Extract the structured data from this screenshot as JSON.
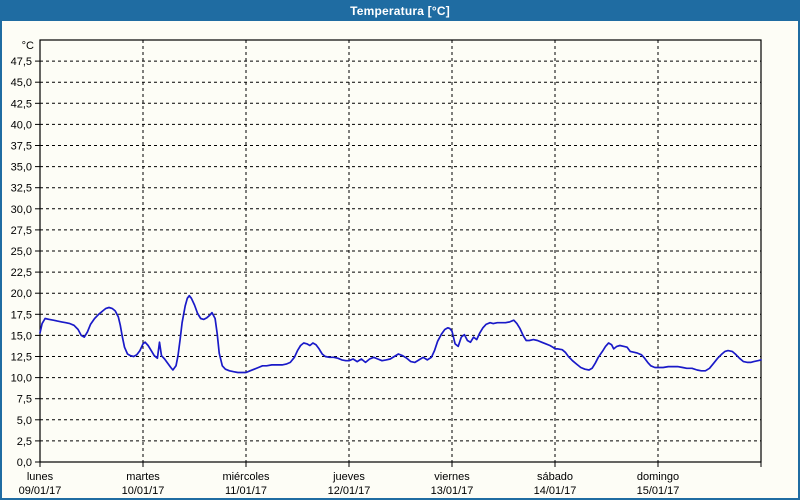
{
  "window": {
    "title": "Temperatura [°C]"
  },
  "colors": {
    "titlebar_bg": "#1f6ca2",
    "titlebar_text": "#ffffff",
    "panel_border": "#1f6ca2",
    "background": "#fdfdf6",
    "grid": "#000000",
    "axis": "#000000",
    "text": "#000000",
    "series_line": "#1a1ac8"
  },
  "chart_data": {
    "type": "line",
    "title": "Temperatura [°C]",
    "legend": "none",
    "grid": {
      "horizontal": true,
      "vertical": true,
      "style": "dashed"
    },
    "y_axis": {
      "unit_label": "°C",
      "min": 0,
      "max": 50,
      "tick_step": 2.5,
      "decimal_separator": ",",
      "tick_values": [
        0,
        2.5,
        5,
        7.5,
        10,
        12.5,
        15,
        17.5,
        20,
        22.5,
        25,
        27.5,
        30,
        32.5,
        35,
        37.5,
        40,
        42.5,
        45,
        47.5
      ],
      "tick_labels": [
        "0,0",
        "2,5",
        "5,0",
        "7,5",
        "10,0",
        "12,5",
        "15,0",
        "17,5",
        "20,0",
        "22,5",
        "25,0",
        "27,5",
        "30,0",
        "32,5",
        "35,0",
        "37,5",
        "40,0",
        "42,5",
        "45,0",
        "47,5"
      ]
    },
    "x_axis": {
      "span_days": 7,
      "categories": [
        {
          "day": "lunes",
          "date": "09/01/17"
        },
        {
          "day": "martes",
          "date": "10/01/17"
        },
        {
          "day": "miércoles",
          "date": "11/01/17"
        },
        {
          "day": "jueves",
          "date": "12/01/17"
        },
        {
          "day": "viernes",
          "date": "13/01/17"
        },
        {
          "day": "sábado",
          "date": "14/01/17"
        },
        {
          "day": "domingo",
          "date": "15/01/17"
        }
      ]
    },
    "series": [
      {
        "name": "Temperatura [°C]",
        "color": "#1a1ac8",
        "points": [
          [
            0.0,
            15.3
          ],
          [
            0.02,
            16.4
          ],
          [
            0.05,
            17.0
          ],
          [
            0.09,
            16.9
          ],
          [
            0.13,
            16.8
          ],
          [
            0.17,
            16.7
          ],
          [
            0.21,
            16.6
          ],
          [
            0.25,
            16.5
          ],
          [
            0.29,
            16.4
          ],
          [
            0.33,
            16.2
          ],
          [
            0.37,
            15.7
          ],
          [
            0.4,
            15.0
          ],
          [
            0.43,
            14.8
          ],
          [
            0.46,
            15.4
          ],
          [
            0.49,
            16.3
          ],
          [
            0.53,
            17.0
          ],
          [
            0.57,
            17.5
          ],
          [
            0.61,
            17.9
          ],
          [
            0.64,
            18.2
          ],
          [
            0.67,
            18.3
          ],
          [
            0.7,
            18.2
          ],
          [
            0.73,
            17.9
          ],
          [
            0.76,
            17.2
          ],
          [
            0.78,
            16.2
          ],
          [
            0.8,
            14.8
          ],
          [
            0.82,
            13.6
          ],
          [
            0.85,
            12.8
          ],
          [
            0.88,
            12.6
          ],
          [
            0.91,
            12.5
          ],
          [
            0.94,
            12.7
          ],
          [
            0.97,
            13.2
          ],
          [
            1.0,
            14.0
          ],
          [
            1.02,
            14.2
          ],
          [
            1.05,
            13.8
          ],
          [
            1.08,
            13.2
          ],
          [
            1.11,
            12.6
          ],
          [
            1.14,
            12.3
          ],
          [
            1.16,
            14.2
          ],
          [
            1.18,
            12.6
          ],
          [
            1.21,
            12.2
          ],
          [
            1.24,
            11.7
          ],
          [
            1.27,
            11.2
          ],
          [
            1.29,
            10.9
          ],
          [
            1.32,
            11.4
          ],
          [
            1.34,
            12.6
          ],
          [
            1.36,
            14.5
          ],
          [
            1.38,
            16.5
          ],
          [
            1.41,
            18.5
          ],
          [
            1.43,
            19.4
          ],
          [
            1.45,
            19.7
          ],
          [
            1.47,
            19.4
          ],
          [
            1.5,
            18.6
          ],
          [
            1.53,
            17.6
          ],
          [
            1.56,
            17.0
          ],
          [
            1.59,
            16.9
          ],
          [
            1.62,
            17.1
          ],
          [
            1.65,
            17.4
          ],
          [
            1.67,
            17.7
          ],
          [
            1.7,
            17.0
          ],
          [
            1.72,
            15.2
          ],
          [
            1.74,
            12.9
          ],
          [
            1.77,
            11.4
          ],
          [
            1.8,
            11.0
          ],
          [
            1.84,
            10.8
          ],
          [
            1.88,
            10.7
          ],
          [
            1.92,
            10.6
          ],
          [
            1.96,
            10.6
          ],
          [
            2.0,
            10.6
          ],
          [
            2.04,
            10.8
          ],
          [
            2.08,
            11.0
          ],
          [
            2.12,
            11.2
          ],
          [
            2.16,
            11.4
          ],
          [
            2.2,
            11.4
          ],
          [
            2.25,
            11.5
          ],
          [
            2.3,
            11.5
          ],
          [
            2.35,
            11.5
          ],
          [
            2.39,
            11.6
          ],
          [
            2.43,
            11.8
          ],
          [
            2.47,
            12.4
          ],
          [
            2.5,
            13.2
          ],
          [
            2.53,
            13.8
          ],
          [
            2.56,
            14.1
          ],
          [
            2.59,
            14.0
          ],
          [
            2.62,
            13.8
          ],
          [
            2.65,
            14.1
          ],
          [
            2.68,
            13.9
          ],
          [
            2.71,
            13.4
          ],
          [
            2.74,
            12.8
          ],
          [
            2.77,
            12.5
          ],
          [
            2.81,
            12.4
          ],
          [
            2.85,
            12.4
          ],
          [
            2.89,
            12.3
          ],
          [
            2.93,
            12.1
          ],
          [
            2.97,
            12.0
          ],
          [
            3.0,
            12.0
          ],
          [
            3.04,
            12.2
          ],
          [
            3.08,
            11.9
          ],
          [
            3.12,
            12.2
          ],
          [
            3.16,
            11.8
          ],
          [
            3.2,
            12.2
          ],
          [
            3.24,
            12.4
          ],
          [
            3.28,
            12.2
          ],
          [
            3.32,
            12.0
          ],
          [
            3.36,
            12.1
          ],
          [
            3.4,
            12.2
          ],
          [
            3.44,
            12.5
          ],
          [
            3.48,
            12.8
          ],
          [
            3.52,
            12.6
          ],
          [
            3.56,
            12.3
          ],
          [
            3.6,
            11.9
          ],
          [
            3.64,
            11.8
          ],
          [
            3.68,
            12.1
          ],
          [
            3.72,
            12.4
          ],
          [
            3.76,
            12.1
          ],
          [
            3.8,
            12.4
          ],
          [
            3.83,
            13.2
          ],
          [
            3.86,
            14.3
          ],
          [
            3.9,
            15.2
          ],
          [
            3.93,
            15.7
          ],
          [
            3.96,
            15.9
          ],
          [
            3.98,
            15.8
          ],
          [
            4.0,
            15.5
          ],
          [
            4.03,
            14.0
          ],
          [
            4.06,
            13.7
          ],
          [
            4.09,
            14.8
          ],
          [
            4.12,
            15.1
          ],
          [
            4.15,
            14.4
          ],
          [
            4.18,
            14.2
          ],
          [
            4.21,
            14.8
          ],
          [
            4.24,
            14.5
          ],
          [
            4.27,
            15.3
          ],
          [
            4.3,
            15.9
          ],
          [
            4.33,
            16.3
          ],
          [
            4.37,
            16.5
          ],
          [
            4.4,
            16.4
          ],
          [
            4.44,
            16.5
          ],
          [
            4.48,
            16.5
          ],
          [
            4.52,
            16.5
          ],
          [
            4.56,
            16.6
          ],
          [
            4.6,
            16.8
          ],
          [
            4.63,
            16.4
          ],
          [
            4.66,
            15.8
          ],
          [
            4.69,
            15.0
          ],
          [
            4.72,
            14.4
          ],
          [
            4.75,
            14.4
          ],
          [
            4.79,
            14.5
          ],
          [
            4.83,
            14.4
          ],
          [
            4.87,
            14.2
          ],
          [
            4.91,
            14.0
          ],
          [
            4.95,
            13.8
          ],
          [
            4.98,
            13.6
          ],
          [
            5.0,
            13.4
          ],
          [
            5.03,
            13.4
          ],
          [
            5.07,
            13.3
          ],
          [
            5.1,
            13.0
          ],
          [
            5.13,
            12.5
          ],
          [
            5.17,
            12.0
          ],
          [
            5.21,
            11.6
          ],
          [
            5.25,
            11.2
          ],
          [
            5.29,
            11.0
          ],
          [
            5.33,
            10.9
          ],
          [
            5.36,
            11.1
          ],
          [
            5.39,
            11.7
          ],
          [
            5.42,
            12.4
          ],
          [
            5.46,
            13.1
          ],
          [
            5.49,
            13.7
          ],
          [
            5.52,
            14.1
          ],
          [
            5.55,
            13.9
          ],
          [
            5.57,
            13.4
          ],
          [
            5.6,
            13.7
          ],
          [
            5.63,
            13.8
          ],
          [
            5.67,
            13.7
          ],
          [
            5.7,
            13.6
          ],
          [
            5.73,
            13.1
          ],
          [
            5.77,
            13.0
          ],
          [
            5.8,
            12.9
          ],
          [
            5.84,
            12.7
          ],
          [
            5.87,
            12.3
          ],
          [
            5.9,
            11.8
          ],
          [
            5.93,
            11.4
          ],
          [
            5.97,
            11.2
          ],
          [
            6.0,
            11.2
          ],
          [
            6.05,
            11.2
          ],
          [
            6.1,
            11.3
          ],
          [
            6.14,
            11.3
          ],
          [
            6.19,
            11.3
          ],
          [
            6.24,
            11.2
          ],
          [
            6.28,
            11.1
          ],
          [
            6.33,
            11.1
          ],
          [
            6.38,
            10.9
          ],
          [
            6.42,
            10.8
          ],
          [
            6.46,
            10.8
          ],
          [
            6.5,
            11.1
          ],
          [
            6.54,
            11.7
          ],
          [
            6.58,
            12.3
          ],
          [
            6.62,
            12.8
          ],
          [
            6.65,
            13.1
          ],
          [
            6.68,
            13.2
          ],
          [
            6.72,
            13.1
          ],
          [
            6.75,
            12.8
          ],
          [
            6.79,
            12.3
          ],
          [
            6.83,
            11.9
          ],
          [
            6.87,
            11.8
          ],
          [
            6.9,
            11.8
          ],
          [
            6.93,
            11.9
          ],
          [
            6.97,
            12.0
          ],
          [
            7.0,
            12.1
          ]
        ]
      }
    ]
  }
}
